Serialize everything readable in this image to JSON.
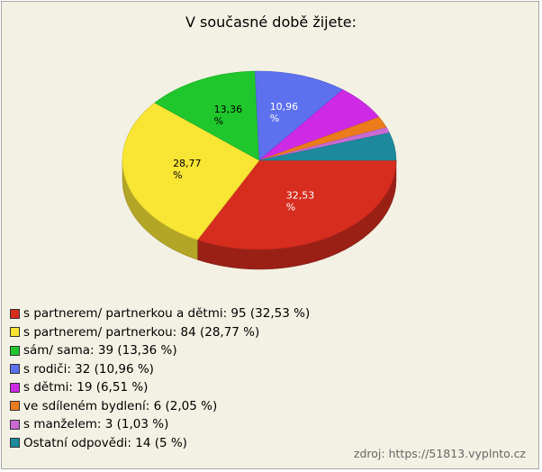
{
  "chart_data": {
    "type": "pie",
    "title": "V současné době žijete:",
    "slices": [
      {
        "label": "s partnerem/ partnerkou a dětmi",
        "count": 95,
        "percent": 32.53,
        "percent_text": "32,53",
        "color": "#d62d1f"
      },
      {
        "label": "s partnerem/ partnerkou",
        "count": 84,
        "percent": 28.77,
        "percent_text": "28,77",
        "color": "#f8e534"
      },
      {
        "label": "sám/ sama",
        "count": 39,
        "percent": 13.36,
        "percent_text": "13,36",
        "color": "#1fc72c"
      },
      {
        "label": "s rodiči",
        "count": 32,
        "percent": 10.96,
        "percent_text": "10,96",
        "color": "#5d70ee"
      },
      {
        "label": "s dětmi",
        "count": 19,
        "percent": 6.51,
        "percent_text": "6,51",
        "color": "#ce2ae6"
      },
      {
        "label": "ve sdíleném bydlení",
        "count": 6,
        "percent": 2.05,
        "percent_text": "2,05",
        "color": "#ec7b1b"
      },
      {
        "label": "s manželem",
        "count": 3,
        "percent": 1.03,
        "percent_text": "1,03",
        "color": "#c86ad2"
      },
      {
        "label": "Ostatní odpovědi",
        "count": 14,
        "percent": 5,
        "percent_text": "5",
        "color": "#1c8a9c"
      }
    ],
    "data_labels": [
      "32,53 %",
      "28,77 %",
      "13,36 %",
      "10,96 %"
    ],
    "legend": [
      "s partnerem/ partnerkou a dětmi: 95 (32,53 %)",
      "s partnerem/ partnerkou: 84 (28,77 %)",
      "sám/ sama: 39 (13,36 %)",
      "s rodiči: 32 (10,96 %)",
      "s dětmi: 19 (6,51 %)",
      "ve sdíleném bydlení: 6 (2,05 %)",
      "s manželem: 3 (1,03 %)",
      "Ostatní odpovědi: 14 (5 %)"
    ]
  },
  "source": {
    "prefix": "zdroj:",
    "url": "https://51813.vyplnto.cz"
  }
}
